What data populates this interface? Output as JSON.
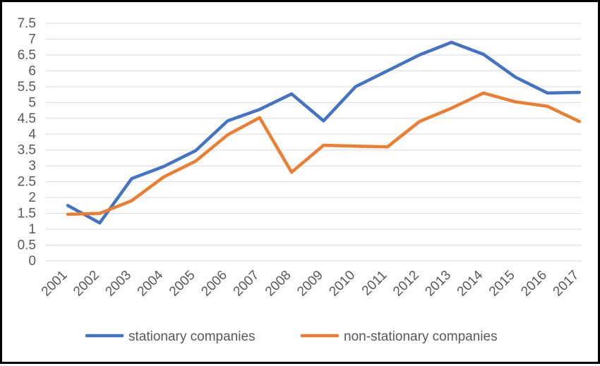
{
  "chart_data": {
    "type": "line",
    "title": "",
    "xlabel": "",
    "ylabel": "",
    "x": [
      "2001",
      "2002",
      "2003",
      "2004",
      "2005",
      "2006",
      "2007",
      "2008",
      "2009",
      "2010",
      "2011",
      "2012",
      "2013",
      "2014",
      "2015",
      "2016",
      "2017"
    ],
    "ylim": [
      0,
      7.5
    ],
    "y_ticks": [
      "0",
      "0.5",
      "1",
      "1.5",
      "2",
      "2.5",
      "3",
      "3.5",
      "4",
      "4.5",
      "5",
      "5.5",
      "6",
      "6.5",
      "7",
      "7.5"
    ],
    "grid": "horizontal",
    "legend_position": "bottom",
    "series": [
      {
        "name": "stationary companies",
        "color": "#4472C4",
        "values": [
          1.75,
          1.2,
          2.6,
          2.98,
          3.48,
          4.42,
          4.78,
          5.27,
          4.42,
          5.5,
          6.0,
          6.5,
          6.9,
          6.52,
          5.8,
          5.3,
          5.32
        ]
      },
      {
        "name": "non-stationary companies",
        "color": "#ED7D31",
        "values": [
          1.47,
          1.5,
          1.9,
          2.65,
          3.15,
          3.98,
          4.52,
          2.8,
          3.65,
          3.62,
          3.6,
          4.4,
          4.82,
          5.3,
          5.02,
          4.88,
          4.4
        ]
      }
    ]
  }
}
